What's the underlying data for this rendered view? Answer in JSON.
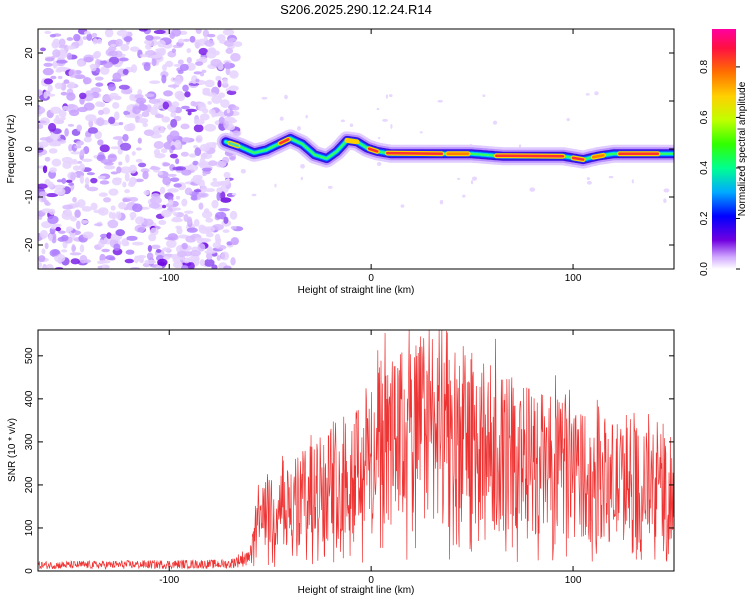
{
  "title": "S206.2025.290.12.24.R14",
  "chart_data": [
    {
      "type": "heatmap",
      "xlabel": "Height of straight line (km)",
      "ylabel": "Frequency (Hz)",
      "xlim": [
        -165,
        150
      ],
      "ylim": [
        -25,
        25
      ],
      "xticks": [
        -100,
        0,
        100
      ],
      "yticks": [
        -20,
        -10,
        0,
        10,
        20
      ],
      "noise_region_x": [
        -165,
        -72
      ],
      "signal_start_x": -72,
      "ridge": {
        "x": [
          -72,
          -65,
          -58,
          -52,
          -46,
          -40,
          -34,
          -28,
          -22,
          -17,
          -12,
          -7,
          -2,
          3,
          10,
          20,
          35,
          50,
          65,
          80,
          95,
          105,
          112,
          120,
          135,
          150
        ],
        "y": [
          1.5,
          0.5,
          -0.8,
          -0.2,
          1.0,
          2.2,
          1.0,
          -1.2,
          -2.0,
          -0.5,
          1.8,
          1.5,
          0.2,
          -0.5,
          -1.0,
          -1.0,
          -1.0,
          -1.0,
          -1.5,
          -1.5,
          -1.5,
          -2.2,
          -1.5,
          -1.0,
          -1.0,
          -1.0
        ]
      },
      "colorbar": {
        "label": "Normalized spectral amplitude",
        "range": [
          0,
          0.95
        ],
        "ticks": [
          0.0,
          0.2,
          0.4,
          0.6,
          0.8
        ]
      }
    },
    {
      "type": "line",
      "series_name": "SNR",
      "xlabel": "Height of straight line (km)",
      "ylabel": "SNR (10 * v/v)",
      "xlim": [
        -165,
        150
      ],
      "ylim": [
        0,
        560
      ],
      "xticks": [
        -100,
        0,
        100
      ],
      "yticks": [
        0,
        100,
        200,
        300,
        400,
        500
      ],
      "color": "#ee3333",
      "envelope": {
        "x": [
          -165,
          -70,
          -60,
          -55,
          -40,
          -20,
          0,
          20,
          30,
          40,
          60,
          80,
          100,
          120,
          150
        ],
        "y": [
          15,
          18,
          40,
          160,
          200,
          280,
          360,
          430,
          470,
          440,
          380,
          340,
          310,
          280,
          250
        ]
      }
    }
  ]
}
